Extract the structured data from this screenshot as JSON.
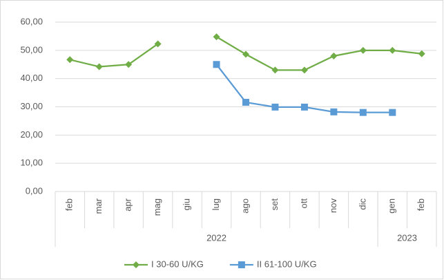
{
  "chart_data": {
    "type": "line",
    "categories": [
      "feb",
      "mar",
      "apr",
      "mag",
      "giu",
      "lug",
      "ago",
      "set",
      "ott",
      "nov",
      "dic",
      "gen",
      "feb"
    ],
    "category_groups": [
      {
        "label": "2022",
        "count": 11
      },
      {
        "label": "2023",
        "count": 2
      }
    ],
    "series": [
      {
        "name": "I 30-60 U/KG",
        "color": "#70ad47",
        "marker": "diamond",
        "values": [
          46.7,
          44.2,
          45.0,
          52.3,
          null,
          54.8,
          48.6,
          43.0,
          43.0,
          48.0,
          50.0,
          50.0,
          48.8
        ]
      },
      {
        "name": "II 61-100 U/KG",
        "color": "#5b9bd5",
        "marker": "square",
        "values": [
          null,
          null,
          null,
          null,
          null,
          45.0,
          31.6,
          29.9,
          29.9,
          28.2,
          28.0,
          28.0,
          null
        ]
      }
    ],
    "ylim": [
      0,
      60
    ],
    "yticks": [
      {
        "value": 0,
        "label": "0,00"
      },
      {
        "value": 10,
        "label": "10,00"
      },
      {
        "value": 20,
        "label": "20,00"
      },
      {
        "value": 30,
        "label": "30,00"
      },
      {
        "value": 40,
        "label": "40,00"
      },
      {
        "value": 50,
        "label": "50,00"
      },
      {
        "value": 60,
        "label": "60,00"
      }
    ],
    "grid": true,
    "legend": "bottom"
  }
}
